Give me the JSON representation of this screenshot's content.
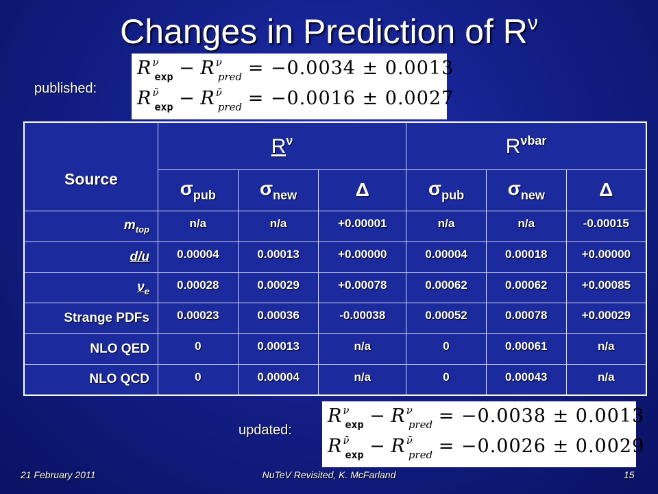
{
  "title": {
    "text": "Changes in Prediction of R",
    "sup": "ν"
  },
  "published_label": "published:",
  "updated_label": "updated:",
  "equations": {
    "published": [
      {
        "R": "R",
        "sup": "ν",
        "exp": "exp",
        "pred": "pred",
        "value": "= −0.0034 ± 0.0013"
      },
      {
        "R": "R",
        "sup": "ν̄",
        "exp": "exp",
        "pred": "pred",
        "value": "= −0.0016 ± 0.0027"
      }
    ],
    "updated": [
      {
        "R": "R",
        "sup": "ν",
        "exp": "exp",
        "pred": "pred",
        "value": "= −0.0038 ± 0.0013"
      },
      {
        "R": "R",
        "sup": "ν̄",
        "exp": "exp",
        "pred": "pred",
        "value": "= −0.0026 ± 0.0029"
      }
    ]
  },
  "table": {
    "source_header": "Source",
    "group_headers": [
      {
        "base": "R",
        "sup": "ν"
      },
      {
        "base": "R",
        "sup": "νbar"
      }
    ],
    "col_headers": [
      {
        "base": "σ",
        "sub": "pub"
      },
      {
        "base": "σ",
        "sub": "new"
      },
      {
        "base": "Δ",
        "sub": ""
      },
      {
        "base": "σ",
        "sub": "pub"
      },
      {
        "base": "σ",
        "sub": "new"
      },
      {
        "base": "Δ",
        "sub": ""
      }
    ],
    "rows": [
      {
        "source": "m",
        "source_sub": "top",
        "values": [
          "n/a",
          "n/a",
          "+0.00001",
          "n/a",
          "n/a",
          "-0.00015"
        ]
      },
      {
        "source": "d/u",
        "source_sub": "",
        "values": [
          "0.00004",
          "0.00013",
          "+0.00000",
          "0.00004",
          "0.00018",
          "+0.00000"
        ]
      },
      {
        "source": "ν",
        "source_sub": "e",
        "values": [
          "0.00028",
          "0.00029",
          "+0.00078",
          "0.00062",
          "0.00062",
          "+0.00085"
        ]
      },
      {
        "source": "Strange PDFs",
        "source_sub": "",
        "values": [
          "0.00023",
          "0.00036",
          "-0.00038",
          "0.00052",
          "0.00078",
          "+0.00029"
        ]
      },
      {
        "source": "NLO QED",
        "source_sub": "",
        "values": [
          "0",
          "0.00013",
          "n/a",
          "0",
          "0.00061",
          "n/a"
        ]
      },
      {
        "source": "NLO QCD",
        "source_sub": "",
        "values": [
          "0",
          "0.00004",
          "n/a",
          "0",
          "0.00043",
          "n/a"
        ]
      }
    ]
  },
  "footer": {
    "date": "21 February 2011",
    "center": "NuTeV Revisited, K. McFarland",
    "page": "15"
  }
}
